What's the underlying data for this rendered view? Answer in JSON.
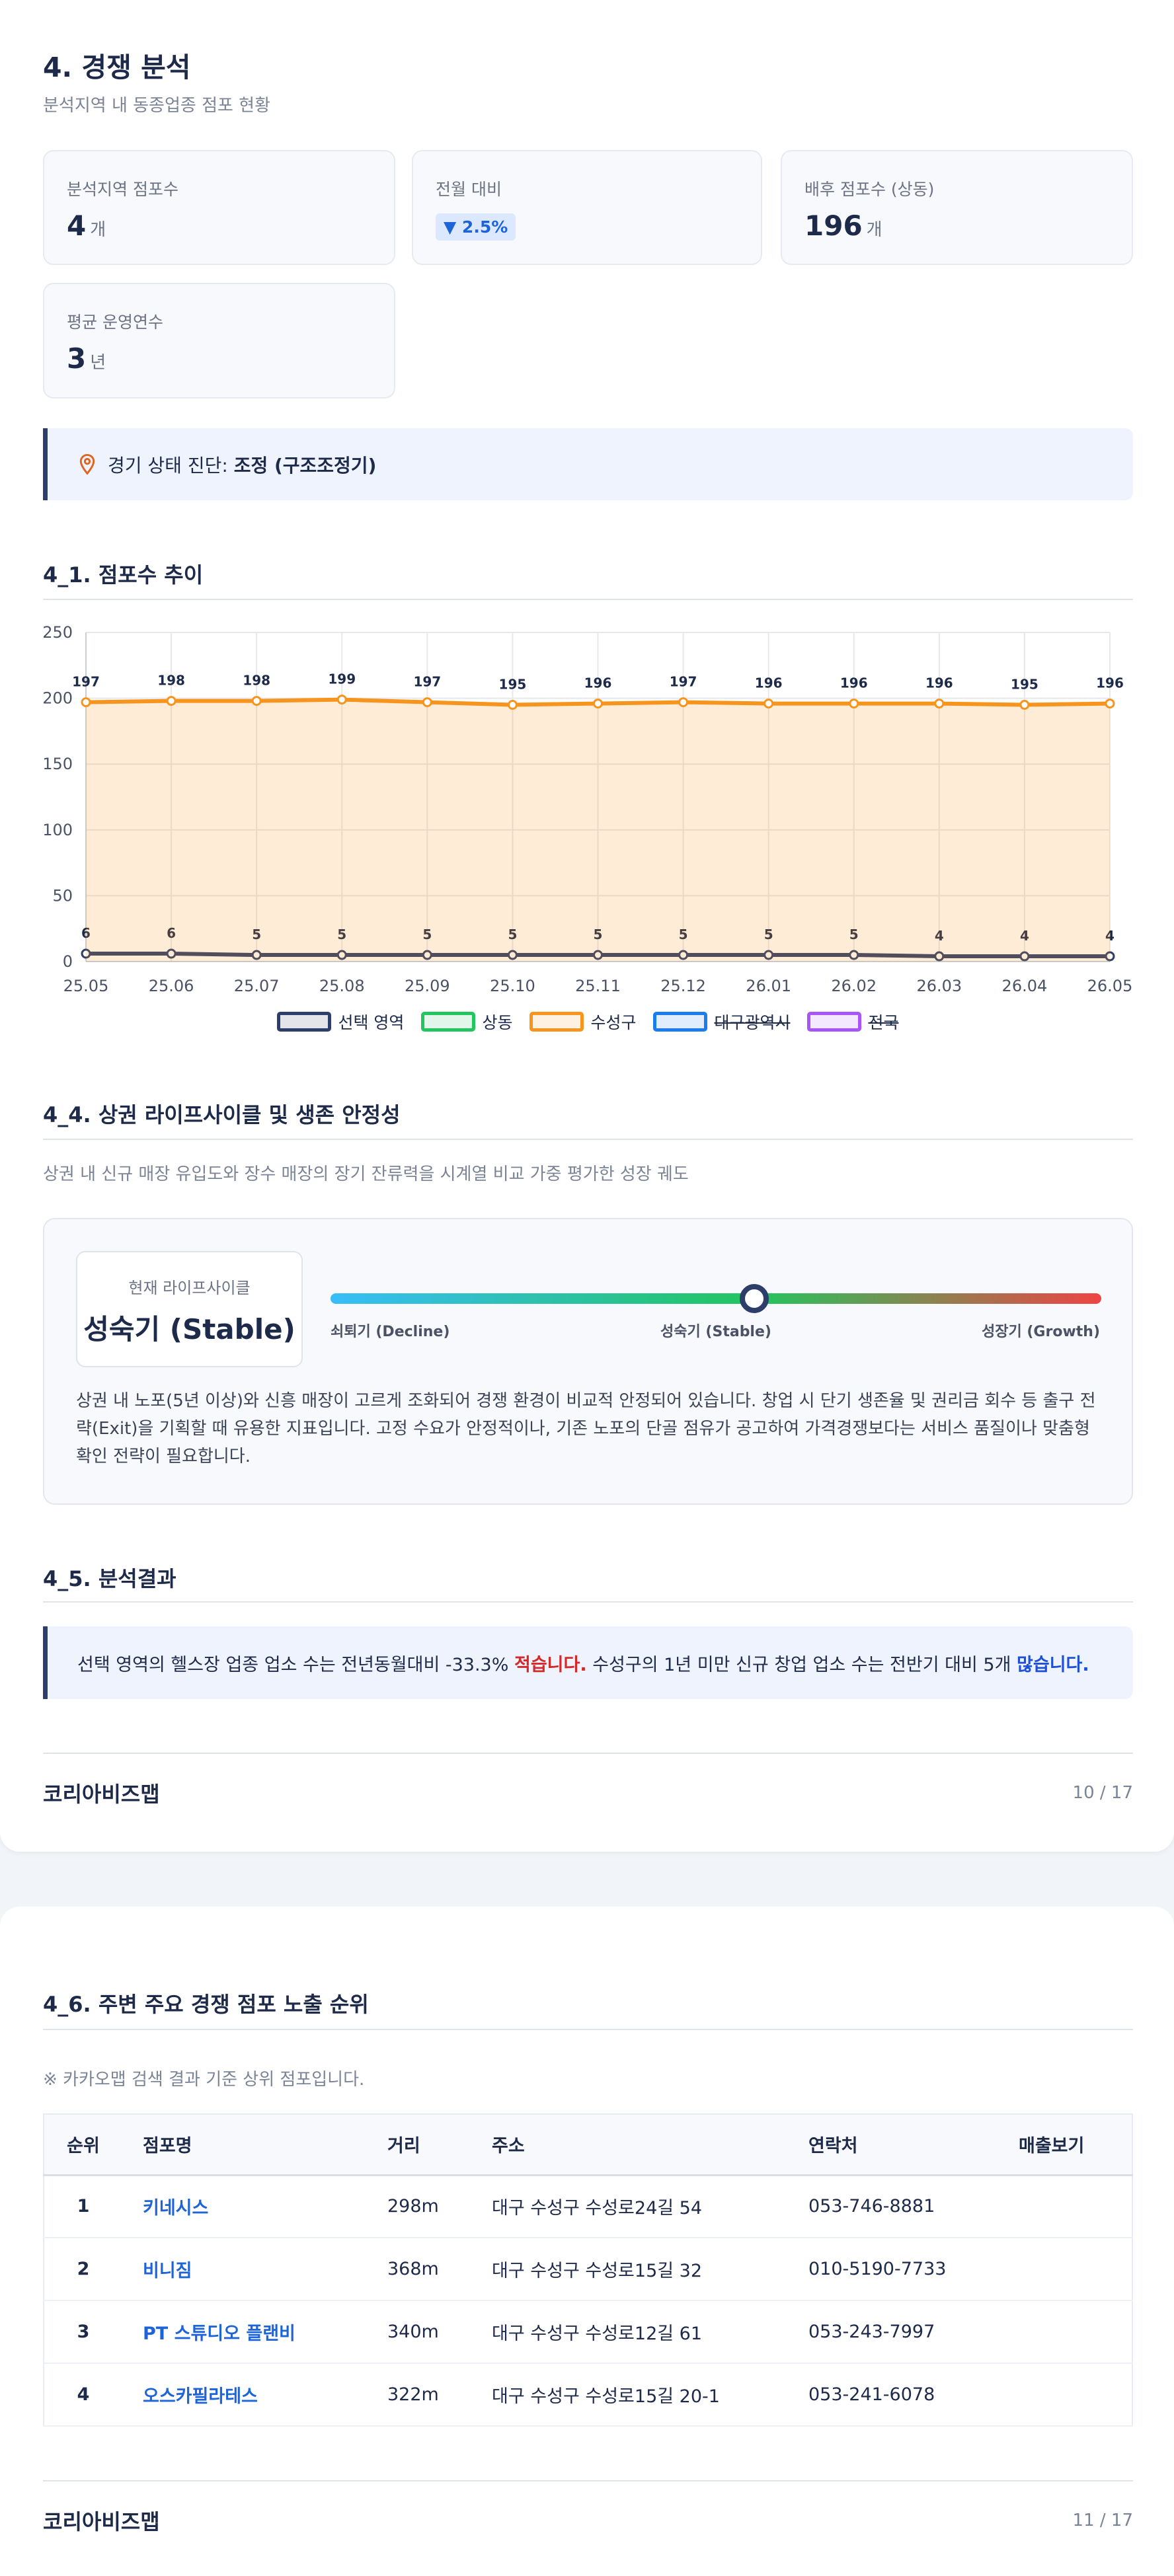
{
  "header": {
    "title": "4. 경쟁 분석",
    "subtitle": "분석지역 내 동종업종 점포 현황"
  },
  "stats": [
    {
      "label": "분석지역 점포수",
      "value": "4",
      "unit": "개"
    },
    {
      "label": "전월 대비",
      "badge": "▼ 2.5%"
    },
    {
      "label": "배후 점포수 (상동)",
      "value": "196",
      "unit": "개"
    },
    {
      "label": "평균 운영연수",
      "value": "3",
      "unit": "년"
    }
  ],
  "diagnosis": {
    "label": "경기 상태 진단: ",
    "value": "조정 (구조조정기)"
  },
  "chart_section": {
    "title": "4_1. 점포수 추이"
  },
  "chart_data": {
    "type": "line",
    "categories": [
      "25.05",
      "25.06",
      "25.07",
      "25.08",
      "25.09",
      "25.10",
      "25.11",
      "25.12",
      "26.01",
      "26.02",
      "26.03",
      "26.04",
      "26.05"
    ],
    "ylim": [
      0,
      250
    ],
    "yticks": [
      0,
      50,
      100,
      150,
      200,
      250
    ],
    "grid": true,
    "legend": "bottom",
    "series": [
      {
        "name": "선택 영역",
        "color": "#2d3e6b",
        "values": [
          6,
          6,
          5,
          5,
          5,
          5,
          5,
          5,
          5,
          5,
          4,
          4,
          4
        ]
      },
      {
        "name": "상동",
        "color": "#22c55e",
        "values": [
          null,
          null,
          null,
          null,
          null,
          null,
          null,
          null,
          null,
          null,
          null,
          null,
          null
        ]
      },
      {
        "name": "수성구",
        "color": "#f7941d",
        "area": true,
        "values": [
          197,
          198,
          198,
          199,
          197,
          195,
          196,
          197,
          196,
          196,
          196,
          195,
          196
        ]
      },
      {
        "name": "대구광역시",
        "color": "#1d7bf0",
        "hidden": true
      },
      {
        "name": "전국",
        "color": "#a855f7",
        "hidden": true
      }
    ]
  },
  "lifecycle": {
    "title": "4_4. 상권 라이프사이클 및 생존 안정성",
    "subtitle": "상권 내 신규 매장 유입도와 장수 매장의 장기 잔류력을 시계열 비교 가중 평가한 성장 궤도",
    "current_label": "현재 라이프사이클",
    "current": "성숙기 (Stable)",
    "position": 55,
    "scale": [
      "쇠퇴기 (Decline)",
      "성숙기 (Stable)",
      "성장기 (Growth)"
    ],
    "description": "상권 내 노포(5년 이상)와 신흥 매장이 고르게 조화되어 경쟁 환경이 비교적 안정되어 있습니다. 창업 시 단기 생존율 및 권리금 회수 등 출구 전략(Exit)을 기획할 때 유용한 지표입니다. 고정 수요가 안정적이나, 기존 노포의 단골 점유가 공고하여 가격경쟁보다는 서비스 품질이나 맞춤형 확인 전략이 필요합니다."
  },
  "result": {
    "title": "4_5. 분석결과",
    "segments": [
      {
        "text": "선택 영역의 헬스장 업종 업소 수는 전년동월대비 -33.3% ",
        "style": "normal"
      },
      {
        "text": "적습니다.",
        "style": "red"
      },
      {
        "text": " 수성구의 1년 미만 신규 창업 업소 수는 전반기 대비 5개 ",
        "style": "normal"
      },
      {
        "text": "많습니다.",
        "style": "blue"
      }
    ]
  },
  "footer1": {
    "brand": "코리아비즈맵",
    "page": "10 / 17"
  },
  "ranking": {
    "title": "4_6. 주변 주요 경쟁 점포 노출 순위",
    "note": "※ 카카오맵 검색 결과 기준 상위 점포입니다.",
    "columns": [
      "순위",
      "점포명",
      "거리",
      "주소",
      "연락처",
      "매출보기"
    ],
    "rows": [
      [
        "1",
        "키네시스",
        "298m",
        "대구 수성구 수성로24길 54",
        "053-746-8881"
      ],
      [
        "2",
        "비니짐",
        "368m",
        "대구 수성구 수성로15길 32",
        "010-5190-7733"
      ],
      [
        "3",
        "PT 스튜디오 플랜비",
        "340m",
        "대구 수성구 수성로12길 61",
        "053-243-7997"
      ],
      [
        "4",
        "오스카필라테스",
        "322m",
        "대구 수성구 수성로15길 20-1",
        "053-241-6078"
      ]
    ]
  },
  "footer2": {
    "brand": "코리아비즈맵",
    "page": "11 / 17"
  }
}
